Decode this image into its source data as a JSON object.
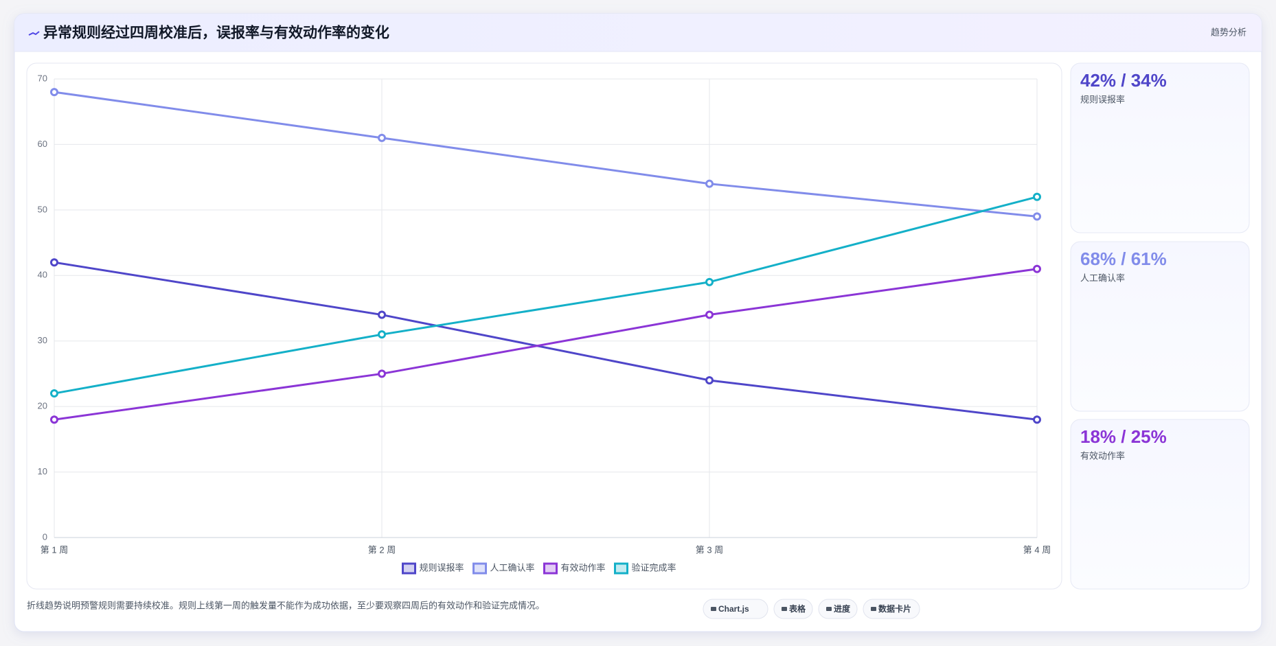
{
  "header": {
    "title": "异常规则经过四周校准后，误报率与有效动作率的变化",
    "tag": "趋势分析"
  },
  "chart_data": {
    "type": "line",
    "categories": [
      "第 1 周",
      "第 2 周",
      "第 3 周",
      "第 4 周"
    ],
    "series": [
      {
        "name": "规则误报率",
        "color": "#4f46c9",
        "values": [
          42,
          34,
          24,
          18
        ]
      },
      {
        "name": "人工确认率",
        "color": "#818cea",
        "values": [
          68,
          61,
          54,
          49
        ]
      },
      {
        "name": "有效动作率",
        "color": "#8b35d6",
        "values": [
          18,
          25,
          34,
          41
        ]
      },
      {
        "name": "验证完成率",
        "color": "#14b0c8",
        "values": [
          22,
          31,
          39,
          52
        ]
      }
    ],
    "ylim": [
      0,
      70
    ],
    "yticks": [
      0,
      10,
      20,
      30,
      40,
      50,
      60,
      70
    ],
    "grid": true,
    "legend": "bottom"
  },
  "kpis": [
    {
      "value": "42% / 34%",
      "label": "规则误报率",
      "color": "#4f46c9"
    },
    {
      "value": "68% / 61%",
      "label": "人工确认率",
      "color": "#818cea"
    },
    {
      "value": "18% / 25%",
      "label": "有效动作率",
      "color": "#8b35d6"
    }
  ],
  "footer": {
    "note": "折线趋势说明预警规则需要持续校准。规则上线第一周的触发量不能作为成功依据，至少要观察四周后的有效动作和验证完成情况。",
    "buttons": [
      "Chart.js",
      "表格",
      "进度",
      "数据卡片"
    ]
  }
}
